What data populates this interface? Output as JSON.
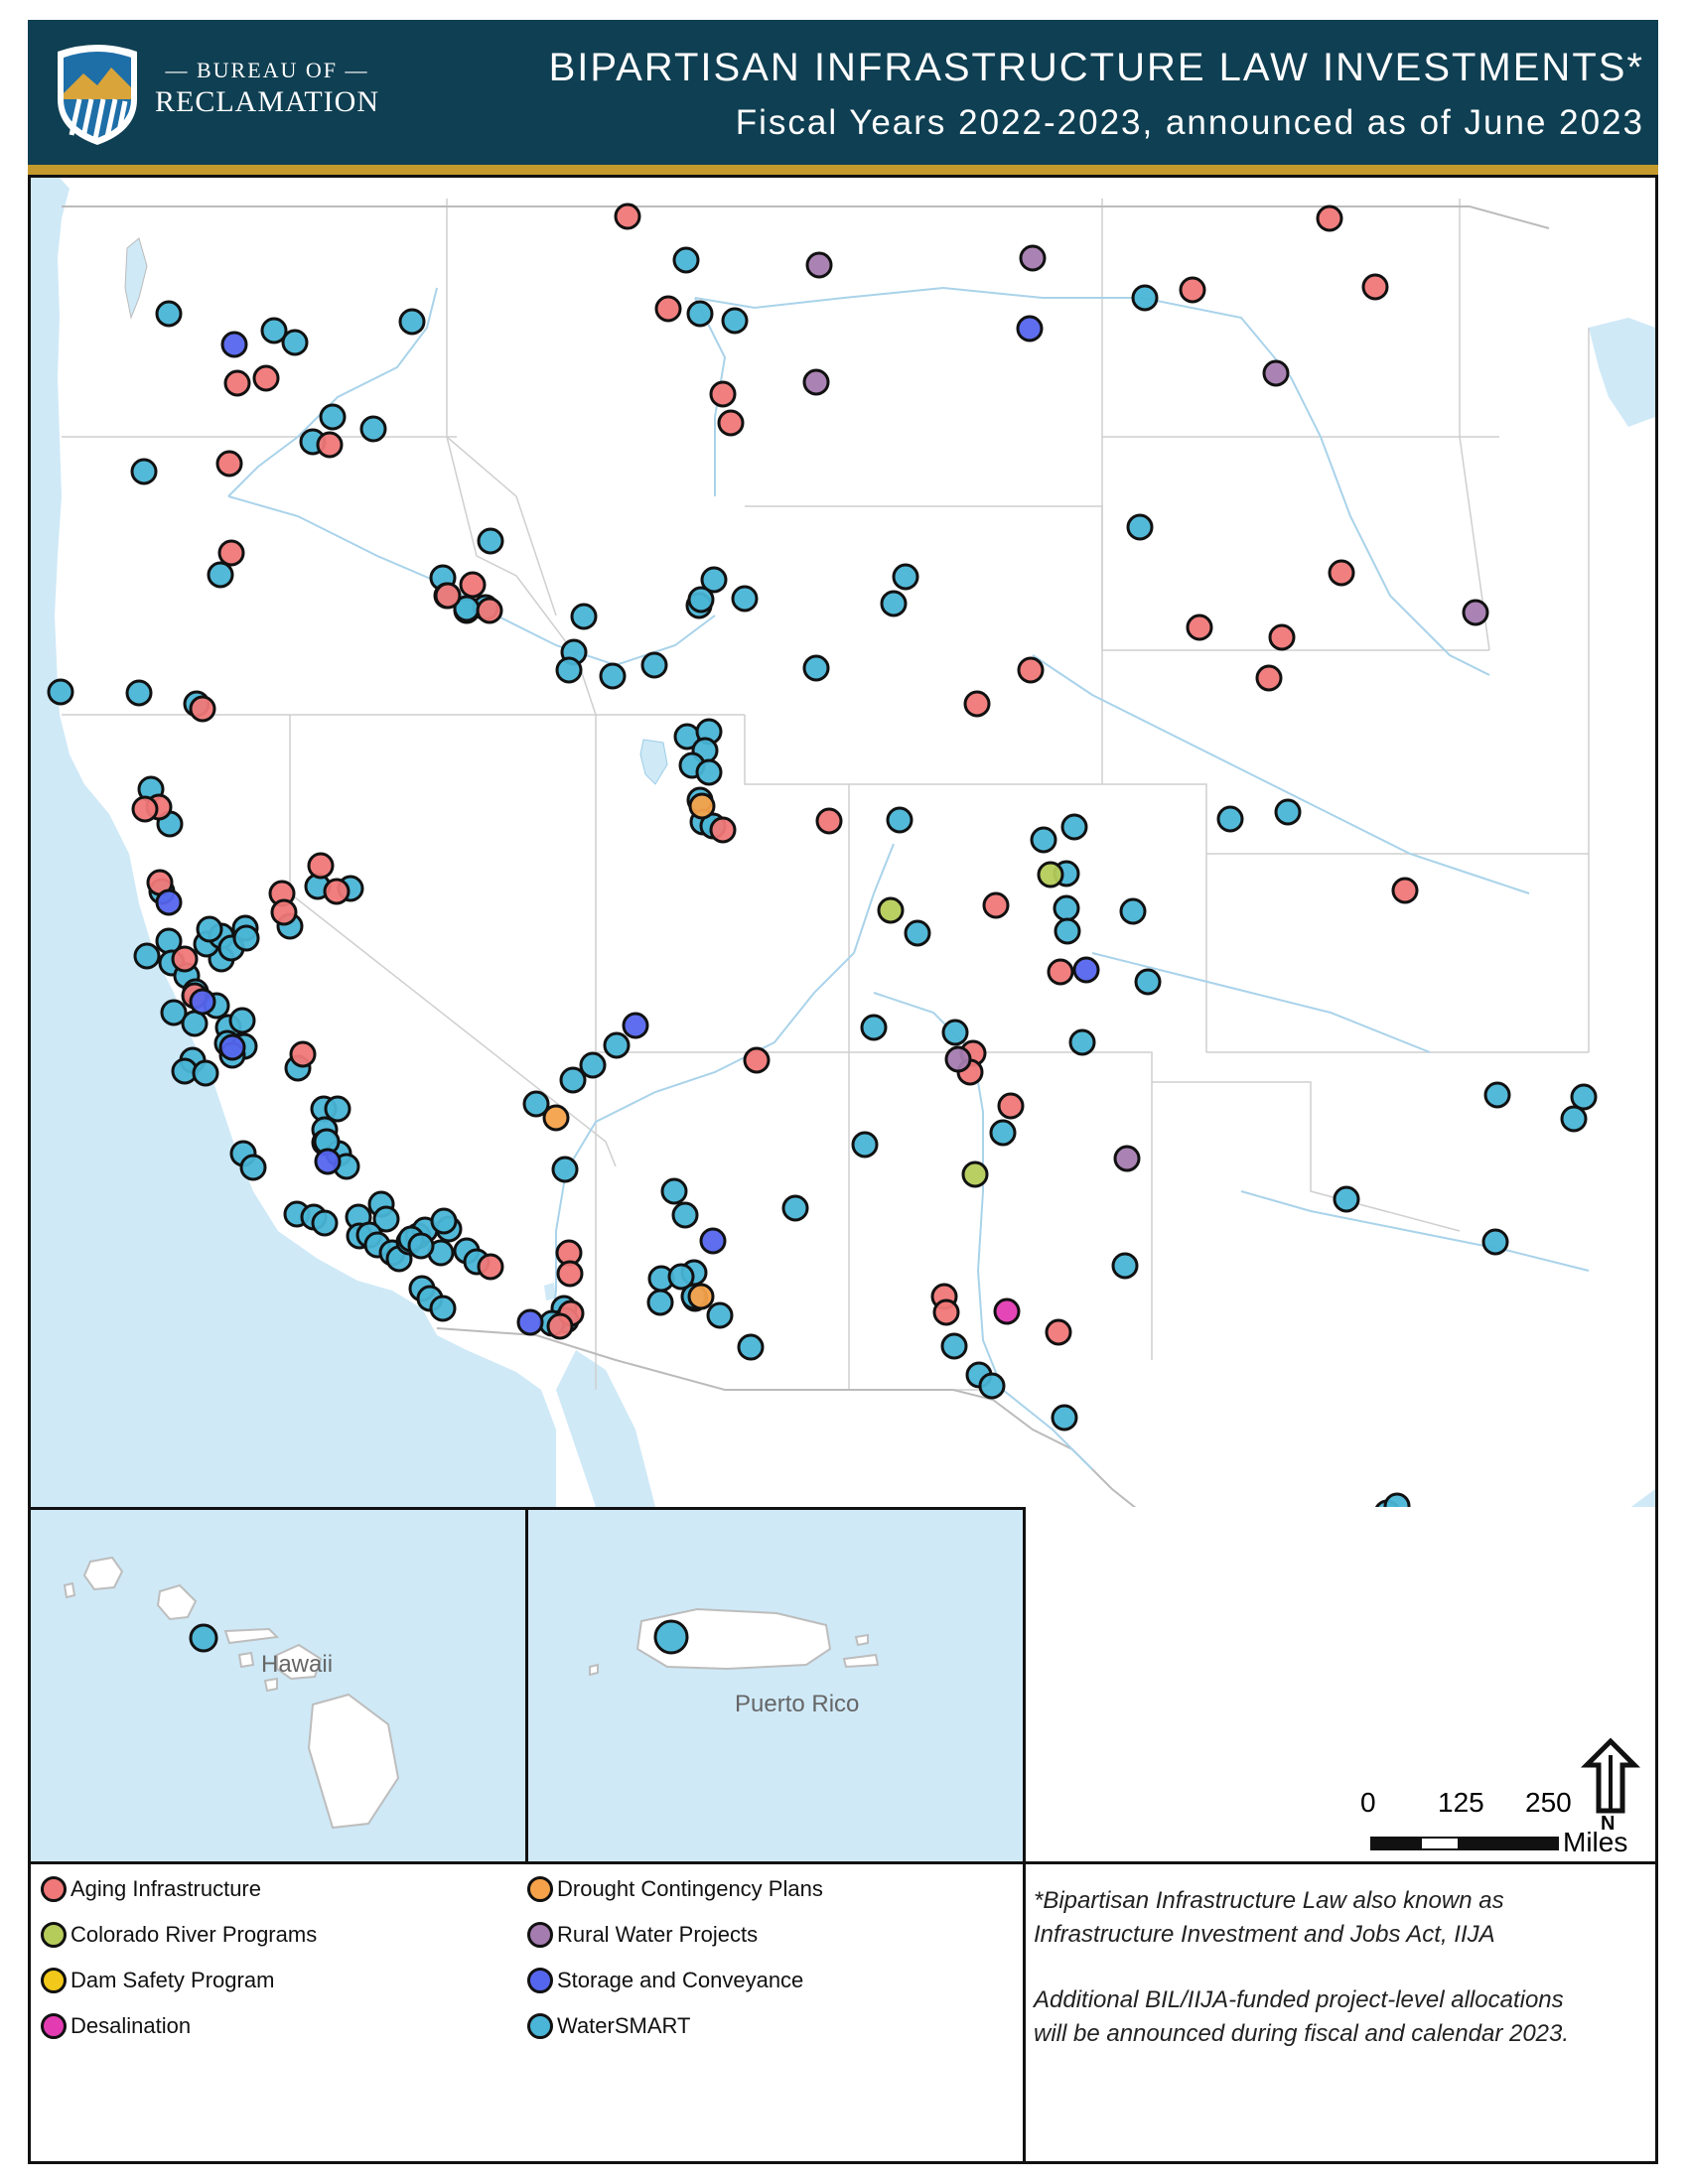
{
  "header": {
    "agency_line1": "— BUREAU OF —",
    "agency_line2": "RECLAMATION",
    "title": "BIPARTISAN INFRASTRUCTURE LAW INVESTMENTS*",
    "subtitle": "Fiscal Years 2022-2023, announced as of June 2023"
  },
  "colors": {
    "header_bg": "#0f3f52",
    "header_rule": "#c49a2c",
    "water": "#cfe9f7",
    "land": "#ffffff"
  },
  "insets": {
    "hawaii_label": "Hawaii",
    "puerto_rico_label": "Puerto Rico"
  },
  "scale": {
    "tick_0": "0",
    "tick_125": "125",
    "tick_250": "250",
    "units": "Miles",
    "north_label": "N"
  },
  "legend": {
    "items": [
      {
        "label": "Aging Infrastructure",
        "color": "#f07878"
      },
      {
        "label": "Colorado River Programs",
        "color": "#b5cc5a"
      },
      {
        "label": "Dam Safety Program",
        "color": "#f2c81a"
      },
      {
        "label": "Desalination",
        "color": "#e33cb3"
      },
      {
        "label": "Drought Contingency Plans",
        "color": "#f5a24a"
      },
      {
        "label": "Rural Water Projects",
        "color": "#a57cb0"
      },
      {
        "label": "Storage and Conveyance",
        "color": "#5566ee"
      },
      {
        "label": "WaterSMART",
        "color": "#4ab5d6"
      }
    ]
  },
  "notes": {
    "note1_line1": "*Bipartisan Infrastructure Law also known as",
    "note1_line2": "Infrastructure Investment and Jobs Act, IIJA",
    "note2_line1": "Additional BIL/IIJA-funded project-level allocations",
    "note2_line2": "will be announced during fiscal and calendar 2023."
  },
  "markers": [
    [
      632,
      218,
      "A"
    ],
    [
      1339,
      220,
      "A"
    ],
    [
      1385,
      289,
      "A"
    ],
    [
      1201,
      292,
      "A"
    ],
    [
      673,
      311,
      "A"
    ],
    [
      728,
      397,
      "A"
    ],
    [
      736,
      426,
      "A"
    ],
    [
      239,
      386,
      "A"
    ],
    [
      268,
      381,
      "A"
    ],
    [
      231,
      467,
      "A"
    ],
    [
      233,
      557,
      "A"
    ],
    [
      332,
      448,
      "A"
    ],
    [
      204,
      714,
      "A"
    ],
    [
      476,
      589,
      "A"
    ],
    [
      451,
      600,
      "A"
    ],
    [
      493,
      615,
      "A"
    ],
    [
      1351,
      577,
      "A"
    ],
    [
      1208,
      632,
      "A"
    ],
    [
      1291,
      642,
      "A"
    ],
    [
      1278,
      683,
      "A"
    ],
    [
      1038,
      675,
      "A"
    ],
    [
      984,
      709,
      "A"
    ],
    [
      835,
      827,
      "A"
    ],
    [
      1003,
      912,
      "A"
    ],
    [
      1415,
      897,
      "A"
    ],
    [
      160,
      813,
      "A"
    ],
    [
      146,
      815,
      "A"
    ],
    [
      161,
      889,
      "A"
    ],
    [
      284,
      900,
      "A"
    ],
    [
      323,
      872,
      "A"
    ],
    [
      339,
      898,
      "A"
    ],
    [
      286,
      919,
      "A"
    ],
    [
      186,
      966,
      "A"
    ],
    [
      196,
      1003,
      "A"
    ],
    [
      305,
      1062,
      "A"
    ],
    [
      1068,
      979,
      "A"
    ],
    [
      980,
      1061,
      "A"
    ],
    [
      977,
      1080,
      "A"
    ],
    [
      1018,
      1114,
      "A"
    ],
    [
      762,
      1068,
      "A"
    ],
    [
      728,
      836,
      "A"
    ],
    [
      573,
      1262,
      "A"
    ],
    [
      574,
      1283,
      "A"
    ],
    [
      575,
      1323,
      "A"
    ],
    [
      564,
      1336,
      "A"
    ],
    [
      494,
      1276,
      "A"
    ],
    [
      951,
      1306,
      "A"
    ],
    [
      953,
      1322,
      "A"
    ],
    [
      1066,
      1342,
      "A"
    ],
    [
      825,
      267,
      "R"
    ],
    [
      1040,
      260,
      "R"
    ],
    [
      822,
      385,
      "R"
    ],
    [
      1285,
      376,
      "R"
    ],
    [
      1486,
      617,
      "R"
    ],
    [
      965,
      1067,
      "R"
    ],
    [
      1135,
      1167,
      "R"
    ],
    [
      236,
      347,
      "S"
    ],
    [
      1037,
      331,
      "S"
    ],
    [
      170,
      909,
      "S"
    ],
    [
      204,
      1009,
      "S"
    ],
    [
      640,
      1033,
      "S"
    ],
    [
      718,
      1250,
      "S"
    ],
    [
      1094,
      977,
      "S"
    ],
    [
      534,
      1332,
      "S"
    ],
    [
      330,
      1170,
      "S"
    ],
    [
      234,
      1055,
      "S"
    ],
    [
      1058,
      881,
      "C"
    ],
    [
      897,
      917,
      "C"
    ],
    [
      982,
      1183,
      "C"
    ],
    [
      707,
      812,
      "D"
    ],
    [
      706,
      1306,
      "D"
    ],
    [
      560,
      1126,
      "D"
    ],
    [
      1014,
      1321,
      "X"
    ],
    [
      691,
      262,
      "W"
    ],
    [
      705,
      316,
      "W"
    ],
    [
      740,
      323,
      "W"
    ],
    [
      170,
      316,
      "W"
    ],
    [
      276,
      333,
      "W"
    ],
    [
      297,
      345,
      "W"
    ],
    [
      415,
      324,
      "W"
    ],
    [
      335,
      420,
      "W"
    ],
    [
      376,
      432,
      "W"
    ],
    [
      315,
      445,
      "W"
    ],
    [
      145,
      475,
      "W"
    ],
    [
      222,
      579,
      "W"
    ],
    [
      61,
      697,
      "W"
    ],
    [
      140,
      698,
      "W"
    ],
    [
      198,
      709,
      "W"
    ],
    [
      446,
      582,
      "W"
    ],
    [
      450,
      600,
      "W"
    ],
    [
      470,
      615,
      "W"
    ],
    [
      489,
      612,
      "W"
    ],
    [
      470,
      613,
      "W"
    ],
    [
      494,
      545,
      "W"
    ],
    [
      588,
      621,
      "W"
    ],
    [
      578,
      657,
      "W"
    ],
    [
      573,
      675,
      "W"
    ],
    [
      617,
      681,
      "W"
    ],
    [
      659,
      670,
      "W"
    ],
    [
      704,
      610,
      "W"
    ],
    [
      719,
      584,
      "W"
    ],
    [
      706,
      604,
      "W"
    ],
    [
      750,
      603,
      "W"
    ],
    [
      692,
      742,
      "W"
    ],
    [
      714,
      737,
      "W"
    ],
    [
      710,
      756,
      "W"
    ],
    [
      697,
      771,
      "W"
    ],
    [
      714,
      778,
      "W"
    ],
    [
      705,
      806,
      "W"
    ],
    [
      708,
      828,
      "W"
    ],
    [
      718,
      832,
      "W"
    ],
    [
      1153,
      300,
      "W"
    ],
    [
      1148,
      531,
      "W"
    ],
    [
      912,
      581,
      "W"
    ],
    [
      900,
      608,
      "W"
    ],
    [
      822,
      673,
      "W"
    ],
    [
      1239,
      825,
      "W"
    ],
    [
      1297,
      818,
      "W"
    ],
    [
      906,
      826,
      "W"
    ],
    [
      1051,
      846,
      "W"
    ],
    [
      1082,
      833,
      "W"
    ],
    [
      1074,
      880,
      "W"
    ],
    [
      1074,
      915,
      "W"
    ],
    [
      1075,
      938,
      "W"
    ],
    [
      1141,
      918,
      "W"
    ],
    [
      1156,
      989,
      "W"
    ],
    [
      924,
      940,
      "W"
    ],
    [
      880,
      1035,
      "W"
    ],
    [
      962,
      1040,
      "W"
    ],
    [
      1090,
      1050,
      "W"
    ],
    [
      1010,
      1141,
      "W"
    ],
    [
      871,
      1153,
      "W"
    ],
    [
      801,
      1217,
      "W"
    ],
    [
      1508,
      1103,
      "W"
    ],
    [
      1585,
      1127,
      "W"
    ],
    [
      1595,
      1105,
      "W"
    ],
    [
      1356,
      1208,
      "W"
    ],
    [
      1506,
      1251,
      "W"
    ],
    [
      1133,
      1275,
      "W"
    ],
    [
      152,
      795,
      "W"
    ],
    [
      171,
      830,
      "W"
    ],
    [
      163,
      898,
      "W"
    ],
    [
      170,
      948,
      "W"
    ],
    [
      148,
      963,
      "W"
    ],
    [
      173,
      970,
      "W"
    ],
    [
      188,
      983,
      "W"
    ],
    [
      197,
      999,
      "W"
    ],
    [
      218,
      1013,
      "W"
    ],
    [
      175,
      1020,
      "W"
    ],
    [
      196,
      1031,
      "W"
    ],
    [
      230,
      1035,
      "W"
    ],
    [
      229,
      1051,
      "W"
    ],
    [
      194,
      1068,
      "W"
    ],
    [
      186,
      1079,
      "W"
    ],
    [
      207,
      1081,
      "W"
    ],
    [
      244,
      1028,
      "W"
    ],
    [
      246,
      1054,
      "W"
    ],
    [
      234,
      1063,
      "W"
    ],
    [
      223,
      966,
      "W"
    ],
    [
      208,
      951,
      "W"
    ],
    [
      223,
      943,
      "W"
    ],
    [
      211,
      936,
      "W"
    ],
    [
      247,
      935,
      "W"
    ],
    [
      233,
      955,
      "W"
    ],
    [
      248,
      945,
      "W"
    ],
    [
      292,
      933,
      "W"
    ],
    [
      320,
      893,
      "W"
    ],
    [
      353,
      895,
      "W"
    ],
    [
      300,
      1076,
      "W"
    ],
    [
      326,
      1117,
      "W"
    ],
    [
      340,
      1117,
      "W"
    ],
    [
      327,
      1138,
      "W"
    ],
    [
      327,
      1151,
      "W"
    ],
    [
      341,
      1162,
      "W"
    ],
    [
      329,
      1150,
      "W"
    ],
    [
      349,
      1175,
      "W"
    ],
    [
      245,
      1162,
      "W"
    ],
    [
      255,
      1176,
      "W"
    ],
    [
      299,
      1223,
      "W"
    ],
    [
      316,
      1226,
      "W"
    ],
    [
      327,
      1232,
      "W"
    ],
    [
      361,
      1226,
      "W"
    ],
    [
      384,
      1213,
      "W"
    ],
    [
      389,
      1228,
      "W"
    ],
    [
      362,
      1245,
      "W"
    ],
    [
      372,
      1244,
      "W"
    ],
    [
      380,
      1254,
      "W"
    ],
    [
      395,
      1262,
      "W"
    ],
    [
      402,
      1268,
      "W"
    ],
    [
      412,
      1251,
      "W"
    ],
    [
      421,
      1245,
      "W"
    ],
    [
      428,
      1239,
      "W"
    ],
    [
      444,
      1262,
      "W"
    ],
    [
      452,
      1238,
      "W"
    ],
    [
      447,
      1230,
      "W"
    ],
    [
      414,
      1248,
      "W"
    ],
    [
      424,
      1255,
      "W"
    ],
    [
      470,
      1260,
      "W"
    ],
    [
      480,
      1271,
      "W"
    ],
    [
      425,
      1298,
      "W"
    ],
    [
      433,
      1308,
      "W"
    ],
    [
      446,
      1318,
      "W"
    ],
    [
      540,
      1112,
      "W"
    ],
    [
      577,
      1088,
      "W"
    ],
    [
      597,
      1073,
      "W"
    ],
    [
      621,
      1053,
      "W"
    ],
    [
      569,
      1178,
      "W"
    ],
    [
      568,
      1318,
      "W"
    ],
    [
      570,
      1330,
      "W"
    ],
    [
      556,
      1333,
      "W"
    ],
    [
      679,
      1200,
      "W"
    ],
    [
      690,
      1224,
      "W"
    ],
    [
      666,
      1288,
      "W"
    ],
    [
      699,
      1282,
      "W"
    ],
    [
      700,
      1308,
      "W"
    ],
    [
      725,
      1325,
      "W"
    ],
    [
      756,
      1357,
      "W"
    ],
    [
      699,
      1306,
      "W"
    ],
    [
      665,
      1312,
      "W"
    ],
    [
      686,
      1286,
      "W"
    ],
    [
      961,
      1356,
      "W"
    ],
    [
      986,
      1385,
      "W"
    ],
    [
      999,
      1396,
      "W"
    ],
    [
      1072,
      1428,
      "W"
    ],
    [
      1397,
      1524,
      "W"
    ],
    [
      1407,
      1517,
      "W"
    ],
    [
      1416,
      1708,
      "W"
    ],
    [
      1427,
      1716,
      "W"
    ],
    [
      1442,
      1716,
      "W"
    ],
    [
      1448,
      1726,
      "W"
    ],
    [
      1452,
      1731,
      "W"
    ],
    [
      1448,
      1720,
      "W"
    ]
  ],
  "inset_markers": {
    "hawaii": [
      174,
      129,
      "W"
    ],
    "puerto_rico": [
      144,
      128,
      "W"
    ]
  }
}
